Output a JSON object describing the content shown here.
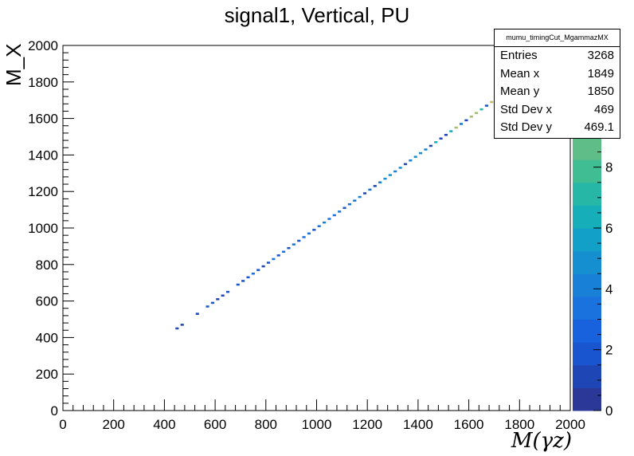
{
  "chart_data": {
    "type": "heatmap",
    "title": "signal1, Vertical, PU",
    "xlabel": "M(γz)",
    "ylabel": "M_X",
    "xlim": [
      0,
      2000
    ],
    "ylim": [
      0,
      2000
    ],
    "x_ticks": [
      "0",
      "200",
      "400",
      "600",
      "800",
      "1000",
      "1200",
      "1400",
      "1600",
      "1800",
      "2000"
    ],
    "y_ticks": [
      "0",
      "200",
      "400",
      "600",
      "800",
      "1000",
      "1200",
      "1400",
      "1600",
      "1800",
      "2000"
    ],
    "z_range": [
      0,
      12
    ],
    "z_ticks": [
      "0",
      "2",
      "4",
      "6",
      "8"
    ],
    "bin_width": 20,
    "bins": [
      {
        "x": 450,
        "y": 450,
        "z": 1
      },
      {
        "x": 470,
        "y": 470,
        "z": 1
      },
      {
        "x": 530,
        "y": 530,
        "z": 1
      },
      {
        "x": 570,
        "y": 570,
        "z": 2
      },
      {
        "x": 590,
        "y": 590,
        "z": 2
      },
      {
        "x": 610,
        "y": 610,
        "z": 1
      },
      {
        "x": 630,
        "y": 630,
        "z": 1
      },
      {
        "x": 650,
        "y": 650,
        "z": 2
      },
      {
        "x": 690,
        "y": 690,
        "z": 2
      },
      {
        "x": 710,
        "y": 710,
        "z": 2
      },
      {
        "x": 730,
        "y": 730,
        "z": 2
      },
      {
        "x": 750,
        "y": 750,
        "z": 3
      },
      {
        "x": 770,
        "y": 770,
        "z": 2
      },
      {
        "x": 790,
        "y": 790,
        "z": 1
      },
      {
        "x": 810,
        "y": 810,
        "z": 2
      },
      {
        "x": 830,
        "y": 830,
        "z": 3
      },
      {
        "x": 850,
        "y": 850,
        "z": 2
      },
      {
        "x": 870,
        "y": 870,
        "z": 3
      },
      {
        "x": 890,
        "y": 890,
        "z": 2
      },
      {
        "x": 910,
        "y": 910,
        "z": 3
      },
      {
        "x": 930,
        "y": 930,
        "z": 2
      },
      {
        "x": 950,
        "y": 950,
        "z": 3
      },
      {
        "x": 970,
        "y": 970,
        "z": 3
      },
      {
        "x": 990,
        "y": 990,
        "z": 2
      },
      {
        "x": 1010,
        "y": 1010,
        "z": 3
      },
      {
        "x": 1030,
        "y": 1030,
        "z": 4
      },
      {
        "x": 1050,
        "y": 1050,
        "z": 3
      },
      {
        "x": 1070,
        "y": 1070,
        "z": 3
      },
      {
        "x": 1090,
        "y": 1090,
        "z": 3
      },
      {
        "x": 1110,
        "y": 1110,
        "z": 2
      },
      {
        "x": 1130,
        "y": 1130,
        "z": 3
      },
      {
        "x": 1150,
        "y": 1150,
        "z": 3
      },
      {
        "x": 1170,
        "y": 1170,
        "z": 4
      },
      {
        "x": 1190,
        "y": 1190,
        "z": 1
      },
      {
        "x": 1210,
        "y": 1210,
        "z": 3
      },
      {
        "x": 1230,
        "y": 1230,
        "z": 1
      },
      {
        "x": 1250,
        "y": 1250,
        "z": 4
      },
      {
        "x": 1270,
        "y": 1270,
        "z": 5
      },
      {
        "x": 1290,
        "y": 1290,
        "z": 5
      },
      {
        "x": 1310,
        "y": 1310,
        "z": 4
      },
      {
        "x": 1330,
        "y": 1330,
        "z": 5
      },
      {
        "x": 1350,
        "y": 1350,
        "z": 1
      },
      {
        "x": 1370,
        "y": 1370,
        "z": 4
      },
      {
        "x": 1390,
        "y": 1390,
        "z": 5
      },
      {
        "x": 1410,
        "y": 1410,
        "z": 5
      },
      {
        "x": 1430,
        "y": 1430,
        "z": 4
      },
      {
        "x": 1450,
        "y": 1450,
        "z": 1
      },
      {
        "x": 1470,
        "y": 1470,
        "z": 6
      },
      {
        "x": 1490,
        "y": 1490,
        "z": 1
      },
      {
        "x": 1510,
        "y": 1510,
        "z": 1
      },
      {
        "x": 1530,
        "y": 1530,
        "z": 6
      },
      {
        "x": 1550,
        "y": 1550,
        "z": 10
      },
      {
        "x": 1570,
        "y": 1570,
        "z": 3
      },
      {
        "x": 1590,
        "y": 1590,
        "z": 1
      },
      {
        "x": 1610,
        "y": 1610,
        "z": 10
      },
      {
        "x": 1630,
        "y": 1630,
        "z": 10
      },
      {
        "x": 1650,
        "y": 1650,
        "z": 7
      },
      {
        "x": 1670,
        "y": 1670,
        "z": 2
      },
      {
        "x": 1690,
        "y": 1690,
        "z": 11
      },
      {
        "x": 1710,
        "y": 1710,
        "z": 1
      }
    ],
    "colors": [
      "#2b3898",
      "#1f46b5",
      "#1955cf",
      "#1863dd",
      "#1972dd",
      "#1880d6",
      "#168fd1",
      "#12a0c9",
      "#16afb9",
      "#26b7a6",
      "#41bd94",
      "#5fbd87",
      "#7fbd7a",
      "#a3bc6c",
      "#c4ba61",
      "#e1b84e"
    ],
    "stats": {
      "name": "mumu_timingCut_MgammazMX",
      "rows": [
        {
          "label": "Entries",
          "value": "3268"
        },
        {
          "label": "Mean x",
          "value": "1849"
        },
        {
          "label": "Mean y",
          "value": "1850"
        },
        {
          "label": "Std Dev x",
          "value": "469"
        },
        {
          "label": "Std Dev y",
          "value": "469.1"
        }
      ]
    }
  }
}
